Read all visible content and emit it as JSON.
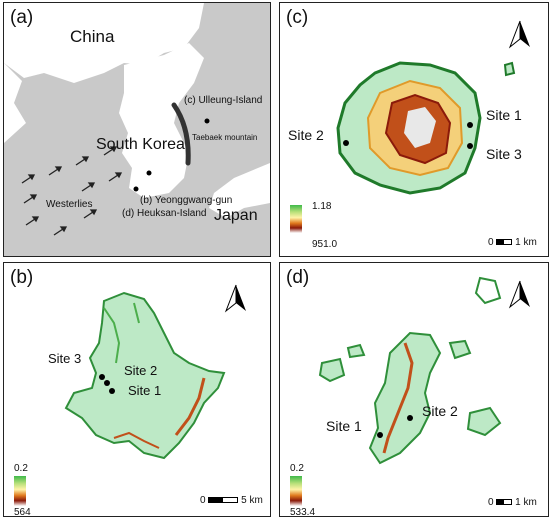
{
  "panels": {
    "a": {
      "label": "(a)",
      "country_china": "China",
      "country_korea": "South Korea",
      "country_japan": "Japan",
      "ulleung": "(c) Ulleung-Island",
      "taebaek": "Taebaek mountain",
      "yeonggwang": "(b) Yeonggwang-gun",
      "heuksan": "(d) Heuksan-Island",
      "westerlies": "Westerlies"
    },
    "b": {
      "label": "(b)",
      "sites": [
        "Site 3",
        "Site 2",
        "Site 1"
      ],
      "legend_min": "0.2",
      "legend_max": "564",
      "scale_left": "0",
      "scale_right": "5 km"
    },
    "c": {
      "label": "(c)",
      "sites": [
        "Site 1",
        "Site 2",
        "Site 3"
      ],
      "legend_min": "1.18",
      "legend_max": "951.0",
      "scale_left": "0",
      "scale_right": "1 km"
    },
    "d": {
      "label": "(d)",
      "sites": [
        "Site 1",
        "Site 2"
      ],
      "legend_min": "0.2",
      "legend_max": "533.4",
      "scale_left": "0",
      "scale_right": "1 km"
    }
  },
  "colors": {
    "land": "#ffffff",
    "sea": "#c9c9c9",
    "low": "#b8e9c4",
    "mid": "#4cae4c",
    "high": "#c1501a",
    "peak": "#ffffff"
  },
  "icons": [
    "north-arrow-icon",
    "wind-arrow-icon",
    "site-marker-icon"
  ]
}
